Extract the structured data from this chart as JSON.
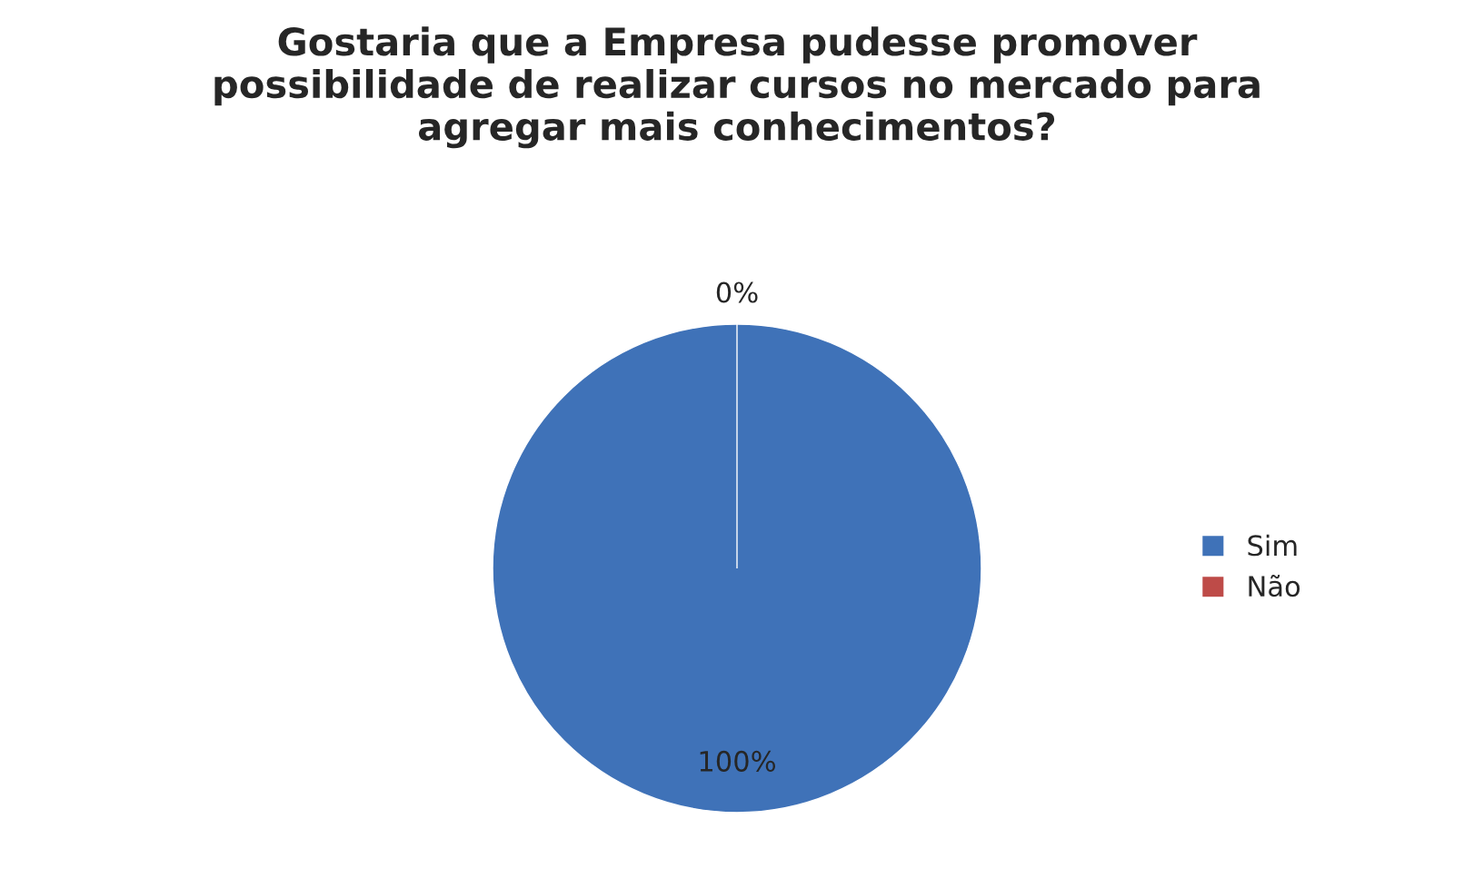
{
  "chart_data": {
    "type": "pie",
    "title": "Gostaria que a Empresa pudesse promover\npossibilidade de realizar cursos no mercado para\nagregar mais conhecimentos?",
    "categories": [
      "Sim",
      "Não"
    ],
    "values": [
      100,
      0
    ],
    "colors": [
      "#3f72b8",
      "#be4b48"
    ],
    "value_labels": [
      "100%",
      "0%"
    ],
    "legend": "right"
  }
}
